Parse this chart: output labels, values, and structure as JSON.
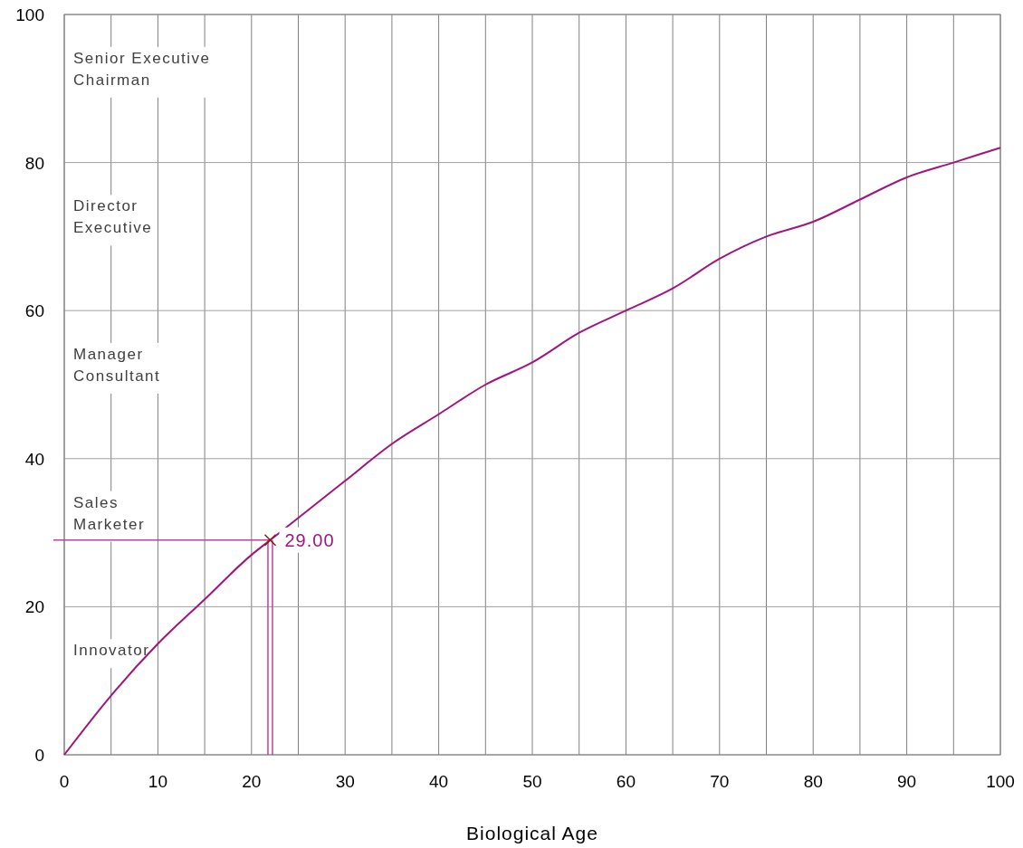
{
  "chart_data": {
    "type": "line",
    "xlabel": "Biological Age",
    "xlim": [
      0,
      100
    ],
    "ylim": [
      0,
      100
    ],
    "xticks": [
      0,
      {
        "value": 5,
        "label": null
      },
      10,
      {
        "value": 15,
        "label": null
      },
      20,
      {
        "value": 25,
        "label": null
      },
      30,
      {
        "value": 35,
        "label": null
      },
      40,
      {
        "value": 45,
        "label": null
      },
      50,
      {
        "value": 55,
        "label": null
      },
      60,
      {
        "value": 65,
        "label": null
      },
      70,
      {
        "value": 75,
        "label": null
      },
      80,
      {
        "value": 85,
        "label": null
      },
      90,
      {
        "value": 95,
        "label": null
      },
      100
    ],
    "yticks": [
      0,
      20,
      40,
      60,
      80,
      100
    ],
    "grid": true,
    "annotations": [
      "Senior Executive\nChairman",
      "Director\nExecutive",
      "Manager\nConsultant",
      "Sales\nMarketer",
      "Innovator"
    ],
    "ref_lines": [
      {
        "axis": "y",
        "value": 29,
        "color": "#c040a0"
      },
      {
        "axis": "x",
        "value": 22,
        "color": "#c040a0"
      }
    ],
    "series": [
      {
        "color": "#a0167e",
        "x": [
          0,
          5,
          10,
          15,
          20,
          22,
          25,
          30,
          35,
          40,
          45,
          50,
          55,
          60,
          65,
          70,
          75,
          80,
          85,
          90,
          95,
          100
        ],
        "values": [
          0,
          8,
          15,
          21,
          27,
          29,
          32,
          37,
          42,
          46,
          50,
          53,
          57,
          60,
          63,
          67,
          70,
          72,
          75,
          78,
          80,
          82
        ]
      },
      {
        "type": "scatter",
        "color": "#8b1a1a",
        "marker": "cross",
        "x": [
          22
        ],
        "values": [
          29
        ],
        "value_labels": [
          "29.00"
        ]
      }
    ]
  }
}
